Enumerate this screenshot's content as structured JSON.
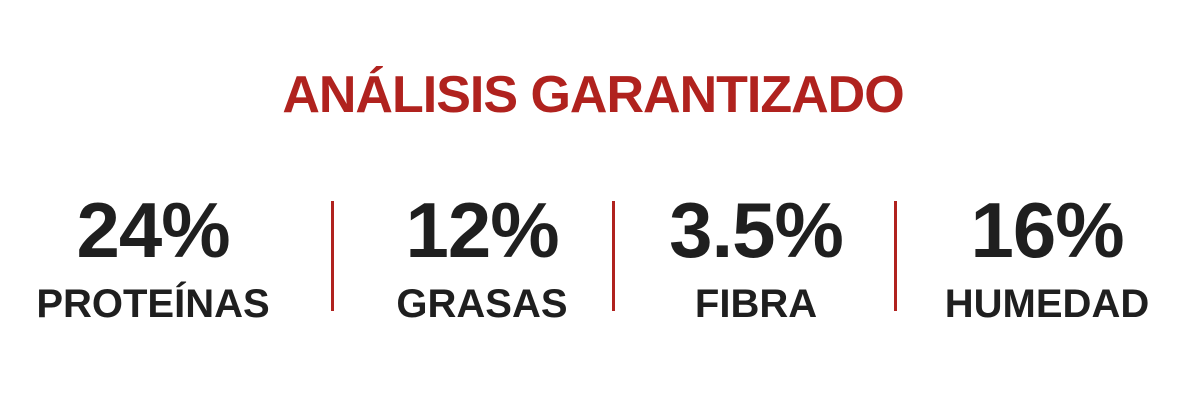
{
  "title": "ANÁLISIS GARANTIZADO",
  "stats": [
    {
      "value": "24%",
      "label": "PROTEÍNAS"
    },
    {
      "value": "12%",
      "label": "GRASAS"
    },
    {
      "value": "3.5%",
      "label": "FIBRA"
    },
    {
      "value": "16%",
      "label": "HUMEDAD"
    }
  ],
  "colors": {
    "accent": "#b0221e",
    "text": "#1f1f1f",
    "background": "#ffffff"
  }
}
